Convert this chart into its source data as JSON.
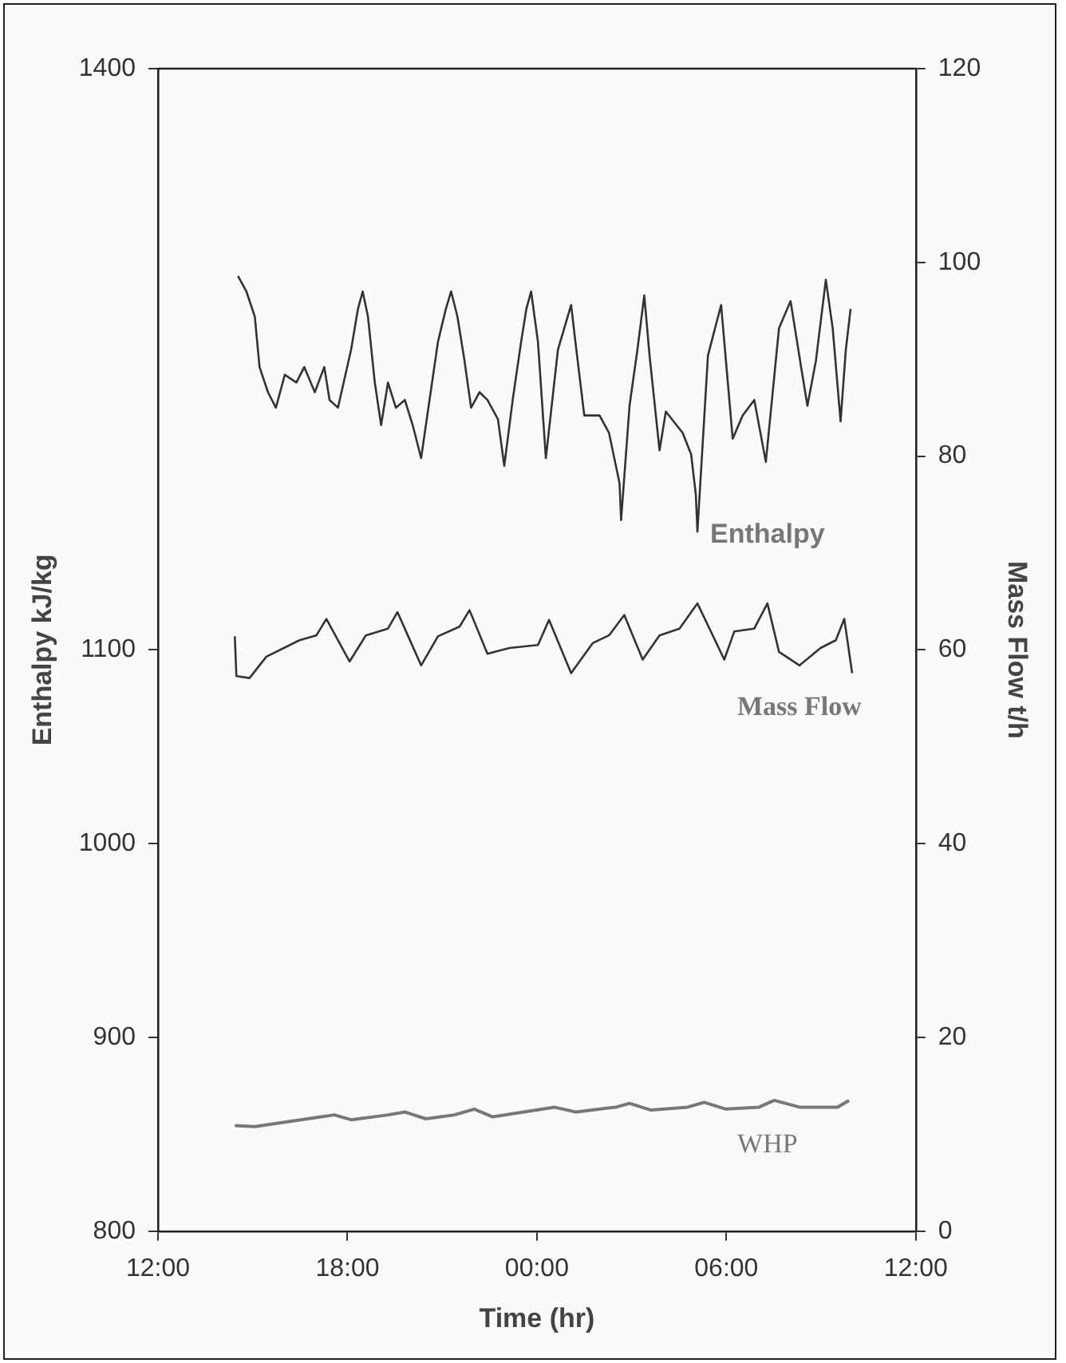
{
  "chart_data": {
    "type": "line",
    "xlabel": "Time (hr)",
    "ylabel": "Enthalpy kJ/kg",
    "y2label": "Mass Flow t/h",
    "xlim": [
      "2000-01-01T12:00",
      "2000-01-02T12:00"
    ],
    "xticks": [
      {
        "value": "2000-01-01T12:00",
        "label": "12:00"
      },
      {
        "value": "2000-01-01T18:00",
        "label": "18:00"
      },
      {
        "value": "2000-01-02T00:00",
        "label": "00:00"
      },
      {
        "value": "2000-01-02T06:00",
        "label": "06:00"
      },
      {
        "value": "2000-01-02T12:00",
        "label": "12:00"
      }
    ],
    "ylim": [
      800,
      1400
    ],
    "yticks": [
      800,
      900,
      1000,
      1100,
      1400
    ],
    "y2lim": [
      0,
      120
    ],
    "y2ticks": [
      0,
      20,
      40,
      60,
      80,
      100,
      120
    ],
    "grid": false,
    "legend": false,
    "marker": "none",
    "line_style": "solid",
    "series": [
      {
        "name": "Enthalpy",
        "color": "#333333",
        "x": [
          "2000-01-01T14:32",
          "2000-01-01T14:48",
          "2000-01-01T15:04",
          "2000-01-01T15:13",
          "2000-01-01T15:29",
          "2000-01-01T15:44",
          "2000-01-01T16:01",
          "2000-01-01T16:23",
          "2000-01-01T16:38",
          "2000-01-01T16:58",
          "2000-01-01T17:16",
          "2000-01-01T17:26",
          "2000-01-01T17:42",
          "2000-01-01T18:07",
          "2000-01-01T18:20",
          "2000-01-01T18:29",
          "2000-01-01T18:39",
          "2000-01-01T18:52",
          "2000-01-01T19:04",
          "2000-01-01T19:17",
          "2000-01-01T19:32",
          "2000-01-01T19:49",
          "2000-01-01T20:04",
          "2000-01-01T20:20",
          "2000-01-01T20:36",
          "2000-01-01T20:52",
          "2000-01-01T21:07",
          "2000-01-01T21:17",
          "2000-01-01T21:29",
          "2000-01-01T21:42",
          "2000-01-01T21:55",
          "2000-01-01T22:11",
          "2000-01-01T22:26",
          "2000-01-01T22:46",
          "2000-01-01T22:58",
          "2000-01-01T23:14",
          "2000-01-01T23:30",
          "2000-01-01T23:40",
          "2000-01-01T23:49",
          "2000-01-02T00:02",
          "2000-01-02T00:17",
          "2000-01-02T00:40",
          "2000-01-02T01:05",
          "2000-01-02T01:14",
          "2000-01-02T01:30",
          "2000-01-02T01:59",
          "2000-01-02T02:17",
          "2000-01-02T02:37",
          "2000-01-02T02:40",
          "2000-01-02T02:56",
          "2000-01-02T03:11",
          "2000-01-02T03:24",
          "2000-01-02T03:34",
          "2000-01-02T03:53",
          "2000-01-02T04:05",
          "2000-01-02T04:37",
          "2000-01-02T04:53",
          "2000-01-02T05:02",
          "2000-01-02T05:05",
          "2000-01-02T05:25",
          "2000-01-02T05:50",
          "2000-01-02T06:12",
          "2000-01-02T06:31",
          "2000-01-02T06:53",
          "2000-01-02T07:15",
          "2000-01-02T07:40",
          "2000-01-02T08:02",
          "2000-01-02T08:22",
          "2000-01-02T08:34",
          "2000-01-02T08:50",
          "2000-01-02T09:09",
          "2000-01-02T09:22",
          "2000-01-02T09:37",
          "2000-01-02T09:47",
          "2000-01-02T09:56"
        ],
        "values": [
          1293,
          1285,
          1272,
          1246,
          1233,
          1225,
          1242,
          1238,
          1246,
          1233,
          1246,
          1229,
          1225,
          1255,
          1276,
          1285,
          1272,
          1238,
          1216,
          1238,
          1225,
          1229,
          1216,
          1199,
          1229,
          1259,
          1276,
          1285,
          1272,
          1250,
          1225,
          1233,
          1229,
          1219,
          1195,
          1229,
          1259,
          1276,
          1285,
          1259,
          1199,
          1255,
          1278,
          1257,
          1221,
          1221,
          1212,
          1186,
          1167,
          1226,
          1255,
          1283,
          1252,
          1203,
          1223,
          1212,
          1201,
          1180,
          1161,
          1252,
          1278,
          1209,
          1221,
          1229,
          1197,
          1266,
          1280,
          1246,
          1226,
          1249,
          1291,
          1266,
          1218,
          1255,
          1276
        ]
      },
      {
        "name": "Mass Flow",
        "color": "#333333",
        "axis": "y2",
        "x": [
          "2000-01-01T14:26",
          "2000-01-01T14:29",
          "2000-01-01T14:54",
          "2000-01-01T15:26",
          "2000-01-01T16:29",
          "2000-01-01T17:01",
          "2000-01-01T17:20",
          "2000-01-01T18:04",
          "2000-01-01T18:35",
          "2000-01-01T19:17",
          "2000-01-01T19:35",
          "2000-01-01T20:20",
          "2000-01-01T20:52",
          "2000-01-01T21:33",
          "2000-01-01T21:52",
          "2000-01-01T22:26",
          "2000-01-01T23:08",
          "2000-01-02T00:02",
          "2000-01-02T00:23",
          "2000-01-02T01:05",
          "2000-01-02T01:46",
          "2000-01-02T02:17",
          "2000-01-02T02:46",
          "2000-01-02T03:21",
          "2000-01-02T03:53",
          "2000-01-02T04:31",
          "2000-01-02T05:05",
          "2000-01-02T05:56",
          "2000-01-02T06:15",
          "2000-01-02T06:53",
          "2000-01-02T07:18",
          "2000-01-02T07:40",
          "2000-01-02T08:19",
          "2000-01-02T08:59",
          "2000-01-02T09:28",
          "2000-01-02T09:44",
          "2000-01-02T09:59"
        ],
        "values": [
          61.4,
          57.3,
          57.1,
          59.3,
          61.0,
          61.5,
          63.2,
          58.8,
          61.5,
          62.2,
          63.9,
          58.4,
          61.4,
          62.4,
          64.1,
          59.6,
          60.2,
          60.5,
          63.1,
          57.6,
          60.7,
          61.5,
          63.6,
          59.0,
          61.5,
          62.2,
          64.8,
          59.0,
          61.9,
          62.2,
          64.8,
          59.8,
          58.4,
          60.2,
          61.0,
          63.2,
          57.6
        ]
      },
      {
        "name": "WHP",
        "color": "#777777",
        "axis": "y2",
        "x": [
          "2000-01-01T14:26",
          "2000-01-01T15:04",
          "2000-01-01T17:10",
          "2000-01-01T17:35",
          "2000-01-01T18:07",
          "2000-01-01T19:17",
          "2000-01-01T19:49",
          "2000-01-01T20:29",
          "2000-01-01T21:23",
          "2000-01-01T22:01",
          "2000-01-01T22:36",
          "2000-01-02T00:11",
          "2000-01-02T00:33",
          "2000-01-02T01:14",
          "2000-01-02T02:30",
          "2000-01-02T02:56",
          "2000-01-02T03:37",
          "2000-01-02T04:46",
          "2000-01-02T05:18",
          "2000-01-02T05:59",
          "2000-01-02T07:02",
          "2000-01-02T07:31",
          "2000-01-02T08:19",
          "2000-01-02T09:31",
          "2000-01-02T09:53"
        ],
        "values": [
          10.9,
          10.8,
          11.8,
          12.0,
          11.5,
          12.0,
          12.3,
          11.6,
          12.0,
          12.6,
          11.8,
          12.6,
          12.8,
          12.3,
          12.8,
          13.2,
          12.5,
          12.8,
          13.3,
          12.6,
          12.8,
          13.5,
          12.8,
          12.8,
          13.5
        ]
      }
    ]
  }
}
